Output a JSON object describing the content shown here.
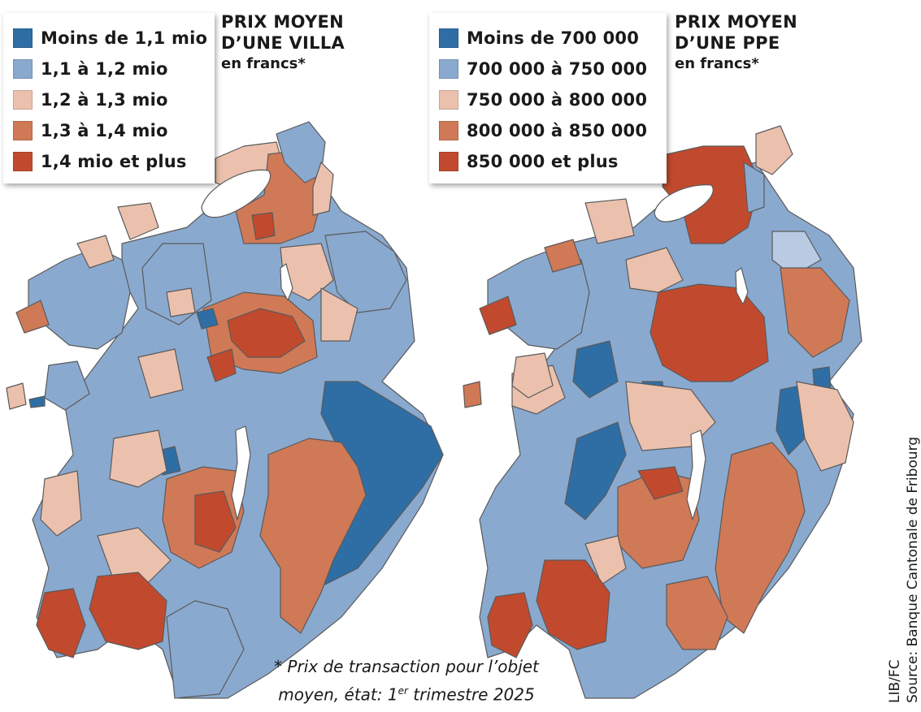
{
  "colors": {
    "dark_blue": "#2e6ea5",
    "mid_blue": "#8aa9cf",
    "pale_blue": "#b8cbe2",
    "pale_salmon": "#ebc1ad",
    "orange": "#d07956",
    "dark_red": "#c14a2e",
    "lake": "#ffffff",
    "border": "#5a5a5a"
  },
  "maps": [
    {
      "title_lines": [
        "PRIX MOYEN",
        "D’UNE VILLA"
      ],
      "subtitle": "en francs*",
      "legend": [
        {
          "label": "Moins de 1,1 mio",
          "color": "#2e6ea5"
        },
        {
          "label": "1,1 à 1,2 mio",
          "color": "#8aa9cf"
        },
        {
          "label": "1,2 à 1,3 mio",
          "color": "#ebc1ad"
        },
        {
          "label": "1,3 à 1,4 mio",
          "color": "#d07956"
        },
        {
          "label": "1,4 mio et plus",
          "color": "#c14a2e"
        }
      ]
    },
    {
      "title_lines": [
        "PRIX MOYEN",
        "D’UNE PPE"
      ],
      "subtitle": "en francs*",
      "legend": [
        {
          "label": "Moins de 700 000",
          "color": "#2e6ea5"
        },
        {
          "label": "700 000 à 750 000",
          "color": "#8aa9cf"
        },
        {
          "label": "750 000 à 800 000",
          "color": "#ebc1ad"
        },
        {
          "label": "800 000 à 850 000",
          "color": "#d07956"
        },
        {
          "label": "850 000 et plus",
          "color": "#c14a2e"
        }
      ]
    }
  ],
  "footnote": {
    "line1": "* Prix de transaction pour l’objet",
    "line2_prefix": "moyen, état: 1",
    "line2_sup": "er",
    "line2_suffix": " trimestre 2025"
  },
  "credit": {
    "line1": "LIB/FC",
    "line2": "Source: Banque Cantonale de Fribourg"
  }
}
